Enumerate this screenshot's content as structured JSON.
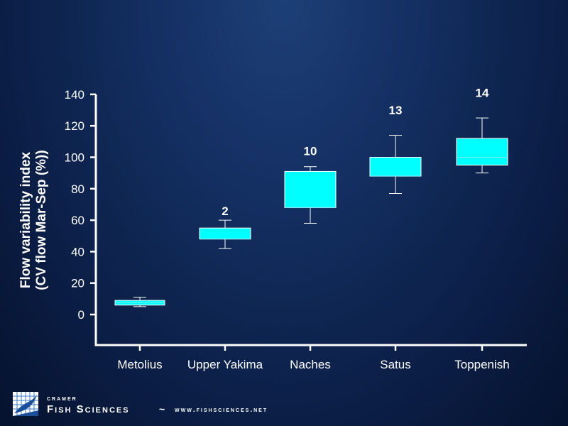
{
  "chart_data": {
    "type": "boxplot",
    "ylabel_line1": "Flow variability index",
    "ylabel_line2": "(CV flow Mar-Sep (%))",
    "ylim": [
      -18,
      140
    ],
    "yticks": [
      0,
      20,
      40,
      60,
      80,
      100,
      120,
      140
    ],
    "ytick_labels": [
      "0",
      "20",
      "40",
      "60",
      "80",
      "100",
      "120",
      "140"
    ],
    "box_color": "#00ffff",
    "grid": false,
    "legend": "none",
    "categories": [
      "Metolius",
      "Upper Yakima",
      "Naches",
      "Satus",
      "Toppenish"
    ],
    "n_labels": [
      "",
      "2",
      "10",
      "13",
      "14"
    ],
    "boxes": [
      {
        "whisker_low": 5,
        "q1": 6,
        "median": 7.5,
        "q3": 9,
        "whisker_high": 11,
        "label_value": null
      },
      {
        "whisker_low": 42,
        "q1": 48,
        "median": 48,
        "q3": 55,
        "whisker_high": 60,
        "label_value": 66
      },
      {
        "whisker_low": 58,
        "q1": 68,
        "median": 68,
        "q3": 91,
        "whisker_high": 94,
        "label_value": 104
      },
      {
        "whisker_low": 77,
        "q1": 88,
        "median": 88,
        "q3": 100,
        "whisker_high": 114,
        "label_value": 130
      },
      {
        "whisker_low": 90,
        "q1": 95,
        "median": 100,
        "q3": 112,
        "whisker_high": 125,
        "label_value": 141
      }
    ]
  },
  "footer": {
    "brand_line1": "Cramer",
    "brand_line2": "Fish Sciences",
    "separator": "~",
    "url": "www.fishsciences.net",
    "logo_icon": "fish-logo-icon"
  }
}
